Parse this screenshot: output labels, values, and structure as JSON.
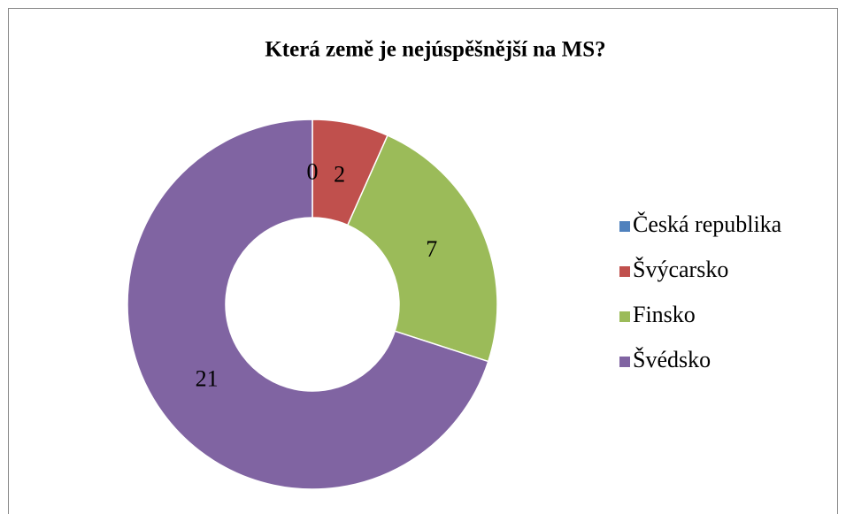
{
  "chart_data": {
    "type": "donut",
    "title": "Která země je nejúspěšnější na MS?",
    "categories": [
      "Česká republika",
      "Švýcarsko",
      "Finsko",
      "Švédsko"
    ],
    "values": [
      0,
      2,
      7,
      21
    ],
    "colors": [
      "#4f81bd",
      "#c0504d",
      "#9bbb59",
      "#8064a2"
    ],
    "legend": "right"
  }
}
